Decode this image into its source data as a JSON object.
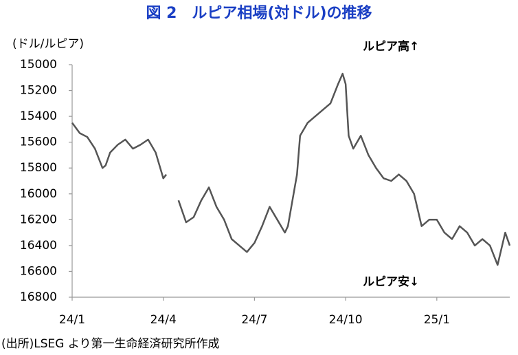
{
  "chart_data": {
    "type": "line",
    "title": "図 2　ルピア相場(対ドル)の推移",
    "y_label": "(ドル/ルピア)",
    "annotations": [
      "ルピア高↑",
      "ルピア安↓"
    ],
    "source": "(出所)LSEG より第一生命経済研究所作成",
    "x": [
      0,
      0.25,
      0.5,
      0.75,
      1,
      1.1,
      1.25,
      1.5,
      1.75,
      2,
      2.25,
      2.5,
      2.75,
      3,
      3.1,
      3.3,
      3.5,
      3.75,
      4,
      4.25,
      4.5,
      4.75,
      5,
      5.25,
      5.5,
      5.75,
      6,
      6.25,
      6.5,
      6.75,
      7,
      7.1,
      7.25,
      7.4,
      7.5,
      7.75,
      8,
      8.25,
      8.5,
      8.75,
      8.9,
      9,
      9.1,
      9.25,
      9.5,
      9.75,
      10,
      10.25,
      10.5,
      10.75,
      11,
      11.25,
      11.5,
      11.75,
      12,
      12.25,
      12.5,
      12.75,
      13,
      13.25,
      13.5,
      13.75,
      14,
      14.25,
      14.4
    ],
    "series": [
      {
        "color": "#555555",
        "values": [
          15450,
          15530,
          15560,
          15650,
          15800,
          15780,
          15680,
          15620,
          15580,
          15650,
          15620,
          15580,
          15680,
          15880,
          15850,
          null,
          16050,
          16220,
          16180,
          16050,
          15950,
          16100,
          16200,
          16350,
          16400,
          16450,
          16380,
          16250,
          16100,
          16200,
          16300,
          16250,
          16050,
          15850,
          15550,
          15450,
          15400,
          15350,
          15300,
          15150,
          15070,
          15150,
          15550,
          15650,
          15550,
          15700,
          15800,
          15880,
          15900,
          15850,
          15900,
          16000,
          16250,
          16200,
          16200,
          16300,
          16350,
          16250,
          16300,
          16400,
          16350,
          16400,
          16550,
          16300,
          16400
        ]
      }
    ],
    "xlim": [
      0,
      14.4
    ],
    "xticks": [
      {
        "value": 0,
        "label": "24/1"
      },
      {
        "value": 3,
        "label": "24/4"
      },
      {
        "value": 6,
        "label": "24/7"
      },
      {
        "value": 9,
        "label": "24/10"
      },
      {
        "value": 12,
        "label": "25/1"
      }
    ],
    "ylim": [
      16800,
      15000
    ],
    "yticks": [
      15000,
      15200,
      15400,
      15600,
      15800,
      16000,
      16200,
      16400,
      16600,
      16800
    ],
    "grid": false
  }
}
